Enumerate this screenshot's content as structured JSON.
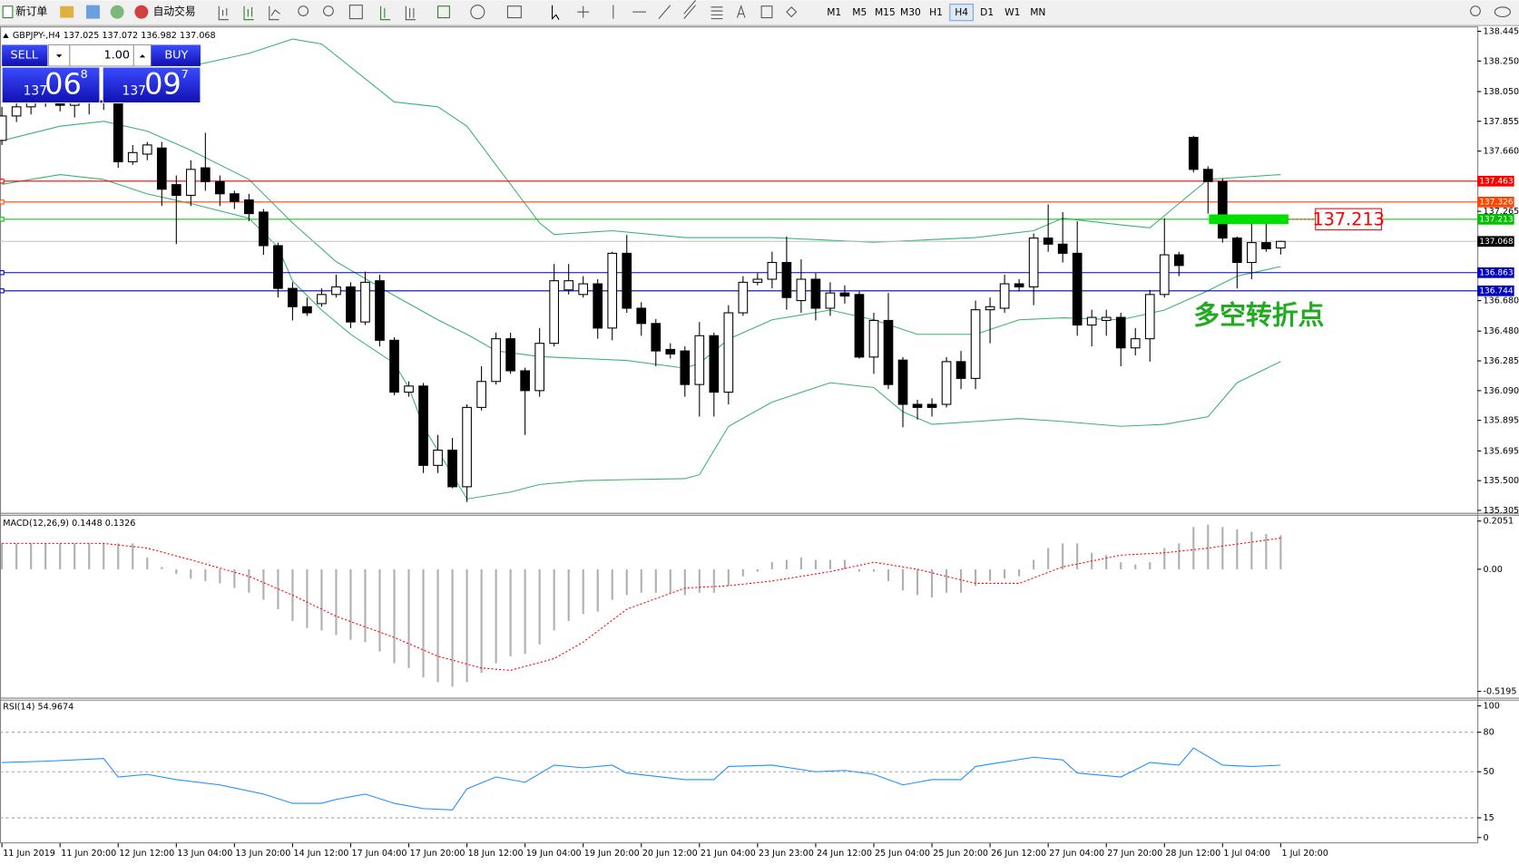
{
  "toolbar": {
    "new_order": "新订单",
    "auto_trading": "自动交易",
    "timeframes": [
      "M1",
      "M5",
      "M15",
      "M30",
      "H1",
      "H4",
      "D1",
      "W1",
      "MN"
    ],
    "active_timeframe": "H4"
  },
  "chart": {
    "symbol": "GBPJPY-,H4",
    "ohlc": [
      137.025,
      137.072,
      136.982,
      137.068
    ],
    "trade_panel": {
      "sell": "SELL",
      "buy": "BUY",
      "lots": {
        "value": 1,
        "label": "1.00"
      },
      "sell_price": {
        "prefix": "137",
        "big": "06",
        "pips": "8"
      },
      "buy_price": {
        "prefix": "137",
        "big": "09",
        "pips": "7"
      }
    },
    "ylim": [
      135.305,
      138.445
    ],
    "yticks": [
      138.445,
      {
        "value": 138.25,
        "label": "138.250"
      },
      {
        "value": 138.05,
        "label": "138.050"
      },
      137.855,
      {
        "value": 137.66,
        "label": "137.660"
      },
      137.265,
      {
        "value": 136.68,
        "label": "136.680"
      },
      {
        "value": 136.48,
        "label": "136.480"
      },
      136.285,
      {
        "value": 136.09,
        "label": "136.090"
      },
      135.895,
      135.695,
      {
        "value": 135.5,
        "label": "135.500"
      },
      135.305
    ],
    "candles": {
      "open": [
        137.73,
        137.89,
        137.95,
        138.0,
        138.02,
        137.96,
        137.98,
        137.99,
        137.98,
        137.59,
        137.64,
        137.68,
        137.44,
        137.37,
        137.55,
        137.46,
        137.38,
        137.34,
        137.26,
        137.04,
        136.76,
        136.64,
        136.66,
        136.72,
        136.77,
        136.54,
        136.81,
        136.42,
        136.08,
        136.12,
        135.6,
        135.7,
        135.46,
        135.98,
        136.15,
        136.43,
        136.22,
        136.09,
        136.4,
        136.75,
        136.72,
        136.79,
        136.5,
        136.99,
        136.63,
        136.53,
        136.36,
        136.35,
        136.13,
        136.45,
        136.08,
        136.6,
        136.8,
        136.82,
        136.93,
        136.68,
        136.82,
        136.63,
        136.73,
        136.72,
        136.31,
        136.55,
        136.29,
        136.0,
        136.0,
        136.0,
        136.28,
        136.17,
        136.62,
        136.63,
        136.79,
        136.77,
        137.09,
        137.05,
        136.99,
        136.52,
        136.55,
        136.57,
        136.37,
        136.43,
        136.72,
        136.98,
        137.75,
        137.54,
        137.46,
        137.09,
        136.93,
        137.06,
        137.025
      ],
      "high": [
        137.95,
        138.0,
        138.05,
        138.08,
        138.06,
        138.02,
        138.04,
        138.03,
        138.0,
        137.7,
        137.72,
        137.72,
        137.5,
        137.6,
        137.78,
        137.5,
        137.4,
        137.38,
        137.28,
        137.06,
        136.8,
        136.7,
        136.76,
        136.85,
        136.8,
        136.87,
        136.85,
        136.44,
        136.15,
        136.14,
        135.8,
        135.78,
        136.0,
        136.25,
        136.47,
        136.47,
        136.24,
        136.5,
        136.92,
        136.92,
        136.84,
        136.82,
        137.0,
        137.11,
        136.67,
        136.56,
        136.4,
        136.38,
        136.54,
        136.47,
        136.65,
        136.84,
        136.86,
        137.0,
        137.1,
        136.95,
        136.86,
        136.8,
        136.78,
        136.74,
        136.6,
        136.73,
        136.31,
        136.03,
        136.04,
        136.31,
        136.35,
        136.68,
        136.7,
        136.85,
        136.82,
        137.12,
        137.31,
        137.26,
        137.2,
        136.62,
        136.62,
        136.6,
        136.5,
        136.75,
        137.22,
        137.0,
        137.76,
        137.56,
        137.48,
        137.1,
        137.2,
        137.21,
        137.072
      ],
      "low": [
        137.7,
        137.85,
        137.9,
        137.95,
        137.92,
        137.88,
        137.9,
        137.93,
        137.55,
        137.57,
        137.6,
        137.3,
        137.05,
        137.3,
        137.4,
        137.3,
        137.28,
        137.2,
        136.98,
        136.7,
        136.55,
        136.58,
        136.64,
        136.7,
        136.5,
        136.52,
        136.38,
        136.06,
        136.05,
        135.55,
        135.55,
        135.45,
        135.36,
        135.96,
        136.13,
        136.2,
        135.8,
        136.05,
        136.38,
        136.72,
        136.7,
        136.43,
        136.42,
        136.6,
        136.45,
        136.25,
        136.3,
        136.05,
        135.92,
        135.92,
        136.0,
        136.58,
        136.78,
        136.76,
        136.62,
        136.6,
        136.55,
        136.58,
        136.66,
        136.3,
        136.2,
        136.1,
        135.85,
        135.9,
        135.92,
        135.98,
        136.1,
        136.1,
        136.4,
        136.6,
        136.74,
        136.65,
        137.0,
        136.93,
        136.45,
        136.38,
        136.45,
        136.25,
        136.32,
        136.28,
        136.7,
        136.84,
        137.52,
        137.25,
        137.06,
        136.76,
        136.82,
        137.0,
        136.982
      ],
      "close": [
        137.89,
        137.95,
        138.0,
        138.02,
        137.96,
        137.98,
        137.99,
        137.98,
        137.59,
        137.65,
        137.7,
        137.41,
        137.37,
        137.54,
        137.46,
        137.38,
        137.33,
        137.25,
        137.04,
        136.76,
        136.64,
        136.6,
        136.72,
        136.77,
        136.54,
        136.8,
        136.42,
        136.08,
        136.12,
        135.6,
        135.7,
        135.46,
        135.98,
        136.15,
        136.43,
        136.22,
        136.09,
        136.4,
        136.81,
        136.81,
        136.79,
        136.5,
        136.99,
        136.63,
        136.53,
        136.35,
        136.33,
        136.13,
        136.45,
        136.08,
        136.6,
        136.8,
        136.82,
        136.93,
        136.7,
        136.82,
        136.63,
        136.73,
        136.71,
        136.31,
        136.55,
        136.13,
        136.0,
        135.98,
        135.98,
        136.28,
        136.17,
        136.62,
        136.64,
        136.79,
        136.77,
        137.09,
        137.05,
        136.99,
        136.52,
        136.57,
        136.57,
        136.37,
        136.43,
        136.72,
        136.98,
        136.91,
        137.54,
        137.46,
        137.09,
        136.93,
        137.06,
        137.02,
        137.068
      ]
    },
    "bollinger": {
      "color": "#3cb371",
      "upper": {
        "x": [
          13,
          17,
          20,
          22,
          27,
          30,
          32,
          34,
          37,
          38,
          42,
          47,
          53,
          60,
          67,
          71,
          73,
          77,
          79,
          81,
          83,
          85,
          88
        ],
        "values": [
          138.217,
          138.3,
          138.394,
          138.362,
          137.982,
          137.95,
          137.823,
          137.569,
          137.189,
          137.113,
          137.138,
          137.093,
          137.093,
          137.062,
          137.093,
          137.138,
          137.22,
          137.176,
          137.157,
          137.316,
          137.474,
          137.487,
          137.506
        ]
      },
      "middle": {
        "x": [
          0,
          4,
          7,
          10,
          13,
          17,
          20,
          23,
          27,
          30,
          32,
          34,
          37,
          40,
          43,
          47,
          48,
          50,
          53,
          57,
          60,
          63,
          67,
          70,
          73,
          77,
          80,
          83,
          85,
          88
        ],
        "values": [
          137.728,
          137.823,
          137.855,
          137.791,
          137.665,
          137.474,
          137.189,
          136.935,
          136.713,
          136.554,
          136.459,
          136.351,
          136.313,
          136.3,
          136.288,
          136.237,
          136.269,
          136.427,
          136.554,
          136.618,
          136.554,
          136.459,
          136.459,
          136.554,
          136.567,
          136.554,
          136.618,
          136.745,
          136.84,
          136.903
        ]
      },
      "lower": {
        "x": [
          0,
          4,
          7,
          10,
          13,
          17,
          19,
          20,
          22,
          24,
          27,
          28,
          29,
          31,
          32,
          35,
          37,
          40,
          43,
          47,
          48,
          50,
          53,
          57,
          60,
          62,
          64,
          67,
          70,
          73,
          77,
          80,
          83,
          85,
          88
        ],
        "values": [
          137.442,
          137.506,
          137.474,
          137.379,
          137.316,
          137.22,
          137.03,
          136.808,
          136.618,
          136.459,
          136.269,
          136.11,
          135.856,
          135.539,
          135.38,
          135.425,
          135.475,
          135.5,
          135.507,
          135.513,
          135.539,
          135.856,
          136.015,
          136.142,
          136.11,
          135.951,
          135.869,
          135.888,
          135.907,
          135.888,
          135.856,
          135.869,
          135.919,
          136.142,
          136.281
        ]
      }
    },
    "levels": [
      {
        "value": 137.463,
        "color": "#ff0000"
      },
      {
        "value": 137.326,
        "color": "#ff4500"
      },
      {
        "value": 137.213,
        "color": "#00c000"
      },
      {
        "value": 136.863,
        "color": "#0000c0"
      },
      {
        "value": 136.744,
        "color": "#0000c0"
      }
    ],
    "bid": 137.068,
    "marker_price": 137.213,
    "annotation": "多空转折点",
    "time_labels": [
      "11 Jun 2019",
      "11 Jun 20:00",
      "12 Jun 12:00",
      "13 Jun 04:00",
      "13 Jun 20:00",
      "14 Jun 12:00",
      "17 Jun 04:00",
      "17 Jun 20:00",
      "18 Jun 12:00",
      "19 Jun 04:00",
      "19 Jun 20:00",
      "20 Jun 12:00",
      "21 Jun 04:00",
      "23 Jun 23:00",
      "24 Jun 12:00",
      "25 Jun 04:00",
      "25 Jun 20:00",
      "26 Jun 12:00",
      "27 Jun 04:00",
      "27 Jun 20:00",
      "28 Jun 12:00",
      "1 Jul 04:00",
      "1 Jul 20:00"
    ]
  },
  "macd": {
    "title": "MACD(12,26,9)",
    "main_value": 0.1448,
    "signal_value": 0.1326,
    "ylim": [
      -0.5195,
      0.2051
    ],
    "yticks": [
      0.2051,
      {
        "value": 0,
        "label": "0.00"
      },
      -0.5195
    ],
    "histogram": [
      0.11,
      0.11,
      0.11,
      0.11,
      0.11,
      0.11,
      0.11,
      0.11,
      0.11,
      0.11,
      0.05,
      0.01,
      -0.02,
      -0.04,
      -0.05,
      -0.06,
      -0.08,
      -0.1,
      -0.13,
      -0.17,
      -0.22,
      -0.25,
      -0.26,
      -0.28,
      -0.3,
      -0.31,
      -0.35,
      -0.4,
      -0.42,
      -0.46,
      -0.48,
      -0.5,
      -0.48,
      -0.44,
      -0.4,
      -0.37,
      -0.36,
      -0.32,
      -0.26,
      -0.22,
      -0.19,
      -0.18,
      -0.13,
      -0.11,
      -0.1,
      -0.1,
      -0.1,
      -0.11,
      -0.1,
      -0.1,
      -0.07,
      -0.03,
      -0.01,
      0.03,
      0.04,
      0.05,
      0.04,
      0.04,
      0.04,
      -0.01,
      -0.01,
      -0.05,
      -0.09,
      -0.11,
      -0.12,
      -0.1,
      -0.1,
      -0.07,
      -0.05,
      -0.04,
      -0.03,
      0.04,
      0.09,
      0.11,
      0.11,
      0.07,
      0.06,
      0.03,
      0.02,
      0.03,
      0.09,
      0.11,
      0.18,
      0.19,
      0.18,
      0.17,
      0.16,
      0.15,
      0.1448
    ],
    "signal": {
      "color": "#ff0000",
      "x": [
        0,
        7,
        10,
        13,
        17,
        20,
        23,
        27,
        30,
        33,
        35,
        38,
        40,
        43,
        47,
        50,
        53,
        57,
        60,
        63,
        67,
        70,
        73,
        77,
        80,
        83,
        88
      ],
      "values": [
        0.11,
        0.11,
        0.09,
        0.04,
        -0.03,
        -0.11,
        -0.2,
        -0.29,
        -0.37,
        -0.42,
        -0.43,
        -0.38,
        -0.31,
        -0.17,
        -0.08,
        -0.07,
        -0.05,
        -0.01,
        0.03,
        0.0,
        -0.06,
        -0.06,
        0.01,
        0.06,
        0.07,
        0.09,
        0.1326
      ]
    }
  },
  "rsi": {
    "title": "RSI(14)",
    "value": 54.9674,
    "ylim": [
      0,
      100
    ],
    "yticks": [
      100,
      80,
      50,
      15,
      0
    ],
    "color": "#1e90ff",
    "x": [
      0,
      3,
      7,
      8,
      10,
      12,
      15,
      18,
      20,
      22,
      23,
      25,
      27,
      29,
      31,
      32,
      34,
      36,
      38,
      40,
      42,
      43,
      47,
      49,
      50,
      53,
      56,
      58,
      60,
      62,
      64,
      66,
      67,
      71,
      73,
      74,
      77,
      79,
      81,
      82,
      84,
      86,
      88
    ],
    "values": [
      57,
      58,
      60,
      46,
      48,
      44,
      40,
      33,
      26,
      26,
      29,
      33,
      26,
      22,
      21,
      37,
      46,
      42,
      55,
      53,
      55,
      49,
      44,
      44,
      54,
      55,
      50,
      51,
      48,
      40,
      44,
      44,
      54,
      61,
      59,
      49,
      46,
      57,
      55,
      68,
      55,
      54,
      54.9674
    ]
  }
}
